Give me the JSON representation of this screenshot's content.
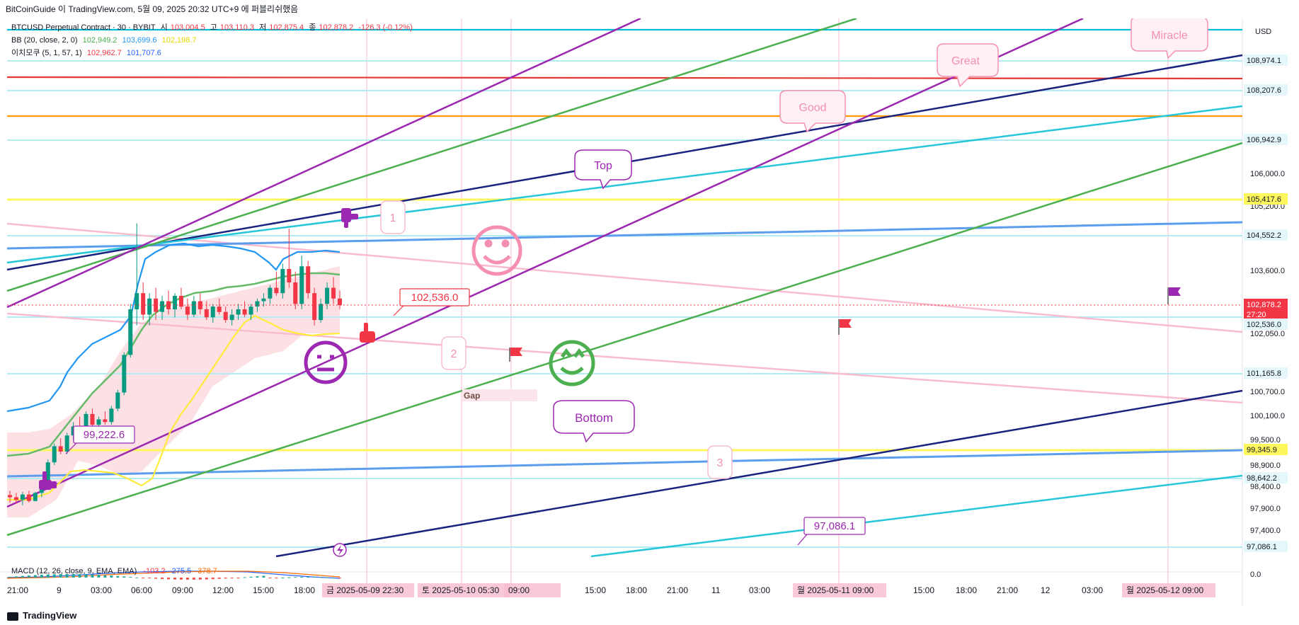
{
  "header": {
    "caption": "BitCoinGuide 이 TradingView.com, 5월 09, 2025 20:32 UTC+9 에 퍼블리쉬했음"
  },
  "legend": {
    "symbol": "BTCUSD Perpetual Contract · 30 · BYBIT",
    "o_label": "시",
    "o": "103,004.5",
    "h_label": "고",
    "h": "103,110.3",
    "l_label": "저",
    "l": "102,875.4",
    "c_label": "종",
    "c": "102,878.2",
    "chg": "-126.3 (-0.12%)",
    "bb_label": "BB (20, close, 2, 0)",
    "bb_basis": "102,949.2",
    "bb_upper": "103,699.6",
    "bb_lower": "102,198.7",
    "ichi_label": "이치모쿠 (5, 1, 57, 1)",
    "ichi_a": "102,962.7",
    "ichi_b": "101,707.6",
    "macd_label": "MACD (12, 26, close, 9, EMA, EMA)",
    "macd_hist": "-103.2",
    "macd_macd": "275.5",
    "macd_signal": "378.7"
  },
  "footer": {
    "brand": "TradingView"
  },
  "chart_data": {
    "type": "candlestick",
    "currency": "USD",
    "price_ticks": [
      "106,000.0",
      "105,200.0",
      "103,600.0",
      "102,050.0",
      "100,700.0",
      "100,100.0",
      "99,500.0",
      "98,900.0",
      "98,400.0",
      "97,900.0",
      "97,400.0"
    ],
    "macd_tick": "0.0",
    "time_ticks": [
      "21:00",
      "9",
      "03:00",
      "06:00",
      "09:00",
      "12:00",
      "15:00",
      "18:00",
      "15:00",
      "18:00",
      "21:00",
      "11",
      "03:00",
      "15:00",
      "18:00",
      "21:00",
      "12",
      "03:00"
    ],
    "time_highlights": [
      "금 2025-05-09  22:30",
      "토 2025-05-10  05:30",
      "09:00",
      "월 2025-05-11  09:00",
      "월 2025-05-12  09:00"
    ],
    "price_labels": [
      {
        "value": "108,974.1",
        "bg": "#e6f7fb"
      },
      {
        "value": "108,207.6",
        "bg": "#e6f7fb"
      },
      {
        "value": "106,942.9",
        "bg": "#e6f7fb"
      },
      {
        "value": "105,417.6",
        "bg": "#fdf65d"
      },
      {
        "value": "104,552.2",
        "bg": "#e6f7fb"
      },
      {
        "value": "102,878.2",
        "bg": "#f23645",
        "sub": "27:20"
      },
      {
        "value": "102,536.0",
        "bg": "#e6f7fb"
      },
      {
        "value": "101,165.8",
        "bg": "#e6f7fb"
      },
      {
        "value": "99,345.9",
        "bg": "#fdf65d"
      },
      {
        "value": "98,642.2",
        "bg": "#e6f7fb"
      },
      {
        "value": "97,086.1",
        "bg": "#e6f7fb"
      }
    ],
    "annotations": {
      "high_callout": "102,536.0",
      "low_callout": "99,222.6",
      "target_callout": "97,086.1",
      "bubbles": [
        "Miracle",
        "Great",
        "Good",
        "Top",
        "Bottom"
      ],
      "wave_marks": [
        "1",
        "2",
        "3"
      ],
      "gap": "Gap"
    },
    "candles": [
      {
        "o": 99340,
        "h": 99420,
        "l": 99200,
        "c": 99300
      },
      {
        "o": 99300,
        "h": 99380,
        "l": 99180,
        "c": 99250
      },
      {
        "o": 99250,
        "h": 99400,
        "l": 99150,
        "c": 99350
      },
      {
        "o": 99350,
        "h": 99420,
        "l": 99200,
        "c": 99230
      },
      {
        "o": 99230,
        "h": 99400,
        "l": 99222,
        "c": 99380
      },
      {
        "o": 99380,
        "h": 99600,
        "l": 99300,
        "c": 99560
      },
      {
        "o": 99560,
        "h": 100000,
        "l": 99500,
        "c": 99950
      },
      {
        "o": 99950,
        "h": 100300,
        "l": 99900,
        "c": 100250
      },
      {
        "o": 100250,
        "h": 100400,
        "l": 100100,
        "c": 100150
      },
      {
        "o": 100150,
        "h": 100500,
        "l": 100100,
        "c": 100450
      },
      {
        "o": 100450,
        "h": 100700,
        "l": 100350,
        "c": 100620
      },
      {
        "o": 100620,
        "h": 100800,
        "l": 100500,
        "c": 100550
      },
      {
        "o": 100550,
        "h": 100900,
        "l": 100500,
        "c": 100850
      },
      {
        "o": 100850,
        "h": 100950,
        "l": 100600,
        "c": 100650
      },
      {
        "o": 100650,
        "h": 100800,
        "l": 100500,
        "c": 100750
      },
      {
        "o": 100750,
        "h": 100900,
        "l": 100650,
        "c": 100700
      },
      {
        "o": 100700,
        "h": 101000,
        "l": 100650,
        "c": 100950
      },
      {
        "o": 100950,
        "h": 101300,
        "l": 100900,
        "c": 101250
      },
      {
        "o": 101250,
        "h": 102000,
        "l": 101200,
        "c": 101950
      },
      {
        "o": 101950,
        "h": 102900,
        "l": 101900,
        "c": 102800
      },
      {
        "o": 102800,
        "h": 104400,
        "l": 102500,
        "c": 103100
      },
      {
        "o": 103100,
        "h": 103300,
        "l": 102600,
        "c": 102700
      },
      {
        "o": 102700,
        "h": 103100,
        "l": 102500,
        "c": 103000
      },
      {
        "o": 103000,
        "h": 103200,
        "l": 102600,
        "c": 102750
      },
      {
        "o": 102750,
        "h": 103050,
        "l": 102600,
        "c": 102950
      },
      {
        "o": 102950,
        "h": 103150,
        "l": 102700,
        "c": 102800
      },
      {
        "o": 102800,
        "h": 103100,
        "l": 102650,
        "c": 103050
      },
      {
        "o": 103050,
        "h": 103200,
        "l": 102800,
        "c": 102850
      },
      {
        "o": 102850,
        "h": 103000,
        "l": 102600,
        "c": 102700
      },
      {
        "o": 102700,
        "h": 103050,
        "l": 102650,
        "c": 102950
      },
      {
        "o": 102950,
        "h": 103100,
        "l": 102700,
        "c": 102800
      },
      {
        "o": 102800,
        "h": 102950,
        "l": 102600,
        "c": 102650
      },
      {
        "o": 102650,
        "h": 102900,
        "l": 102550,
        "c": 102850
      },
      {
        "o": 102850,
        "h": 103000,
        "l": 102700,
        "c": 102750
      },
      {
        "o": 102750,
        "h": 102850,
        "l": 102550,
        "c": 102600
      },
      {
        "o": 102600,
        "h": 102800,
        "l": 102500,
        "c": 102700
      },
      {
        "o": 102700,
        "h": 102900,
        "l": 102600,
        "c": 102800
      },
      {
        "o": 102800,
        "h": 102950,
        "l": 102650,
        "c": 102700
      },
      {
        "o": 102700,
        "h": 102900,
        "l": 102600,
        "c": 102850
      },
      {
        "o": 102850,
        "h": 103000,
        "l": 102750,
        "c": 102950
      },
      {
        "o": 102950,
        "h": 103100,
        "l": 102850,
        "c": 103000
      },
      {
        "o": 103000,
        "h": 103250,
        "l": 102900,
        "c": 103200
      },
      {
        "o": 103200,
        "h": 103500,
        "l": 103050,
        "c": 103100
      },
      {
        "o": 103100,
        "h": 103650,
        "l": 103000,
        "c": 103550
      },
      {
        "o": 103550,
        "h": 104300,
        "l": 103200,
        "c": 103300
      },
      {
        "o": 103300,
        "h": 103500,
        "l": 102800,
        "c": 102900
      },
      {
        "o": 102900,
        "h": 103800,
        "l": 102800,
        "c": 103600
      },
      {
        "o": 103600,
        "h": 103700,
        "l": 103000,
        "c": 103100
      },
      {
        "o": 103100,
        "h": 103200,
        "l": 102500,
        "c": 102600
      },
      {
        "o": 102600,
        "h": 103000,
        "l": 102550,
        "c": 102900
      },
      {
        "o": 102900,
        "h": 103300,
        "l": 102800,
        "c": 103200
      },
      {
        "o": 103200,
        "h": 103400,
        "l": 102900,
        "c": 103000
      },
      {
        "o": 103000,
        "h": 103150,
        "l": 102800,
        "c": 102878
      }
    ]
  }
}
